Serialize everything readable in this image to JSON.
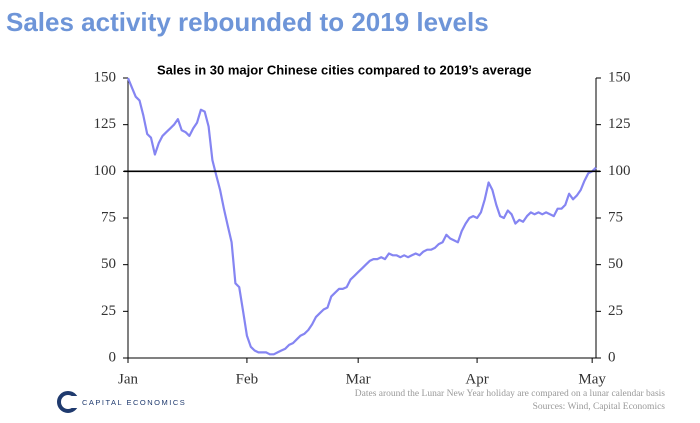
{
  "chart_data": {
    "type": "line",
    "title": "Sales activity rebounded to 2019 levels",
    "subtitle": "Sales in 30 major Chinese cities compared to 2019’s average",
    "footnote": "Dates around the Lunar New Year holiday are compared on a lunar calendar basis",
    "source": "Sources: Wind, Capital Economics",
    "logo": "CAPITAL ECONOMICS",
    "categories": [
      "Jan",
      null,
      null,
      null,
      null,
      null,
      null,
      null,
      null,
      null,
      null,
      null,
      null,
      null,
      null,
      null,
      null,
      null,
      null,
      null,
      null,
      null,
      null,
      null,
      null,
      null,
      null,
      null,
      null,
      null,
      null,
      "Feb",
      null,
      null,
      null,
      null,
      null,
      null,
      null,
      null,
      null,
      null,
      null,
      null,
      null,
      null,
      null,
      null,
      null,
      null,
      null,
      null,
      null,
      null,
      null,
      null,
      null,
      null,
      null,
      null,
      "Mar",
      null,
      null,
      null,
      null,
      null,
      null,
      null,
      null,
      null,
      null,
      null,
      null,
      null,
      null,
      null,
      null,
      null,
      null,
      null,
      null,
      null,
      null,
      null,
      null,
      null,
      null,
      null,
      null,
      null,
      null,
      "Apr",
      null,
      null,
      null,
      null,
      null,
      null,
      null,
      null,
      null,
      null,
      null,
      null,
      null,
      null,
      null,
      null,
      null,
      null,
      null,
      null,
      null,
      null,
      null,
      null,
      null,
      null,
      null,
      null,
      null,
      "May",
      null
    ],
    "values": [
      150,
      145,
      140,
      138,
      130,
      120,
      118,
      109,
      115,
      119,
      121,
      123,
      125,
      128,
      122,
      121,
      119,
      123,
      126,
      133,
      132,
      124,
      106,
      98,
      90,
      80,
      71,
      62,
      40,
      38,
      25,
      12,
      6,
      4,
      3,
      3,
      3,
      2,
      2,
      3,
      4,
      5,
      7,
      8,
      10,
      12,
      13,
      15,
      18,
      22,
      24,
      26,
      27,
      33,
      35,
      37,
      37,
      38,
      42,
      44,
      46,
      48,
      50,
      52,
      53,
      53,
      54,
      53,
      56,
      55,
      55,
      54,
      55,
      54,
      55,
      56,
      55,
      57,
      58,
      58,
      59,
      61,
      62,
      66,
      64,
      63,
      62,
      68,
      72,
      75,
      76,
      75,
      78,
      85,
      94,
      90,
      82,
      76,
      75,
      79,
      77,
      72,
      74,
      73,
      76,
      78,
      77,
      78,
      77,
      78,
      77,
      76,
      80,
      80,
      82,
      88,
      85,
      87,
      90,
      95,
      99,
      100,
      102
    ],
    "color": "#8585f2",
    "hline": 100,
    "ylim": [
      0,
      150
    ],
    "yticks": [
      0,
      25,
      50,
      75,
      100,
      125,
      150
    ]
  }
}
